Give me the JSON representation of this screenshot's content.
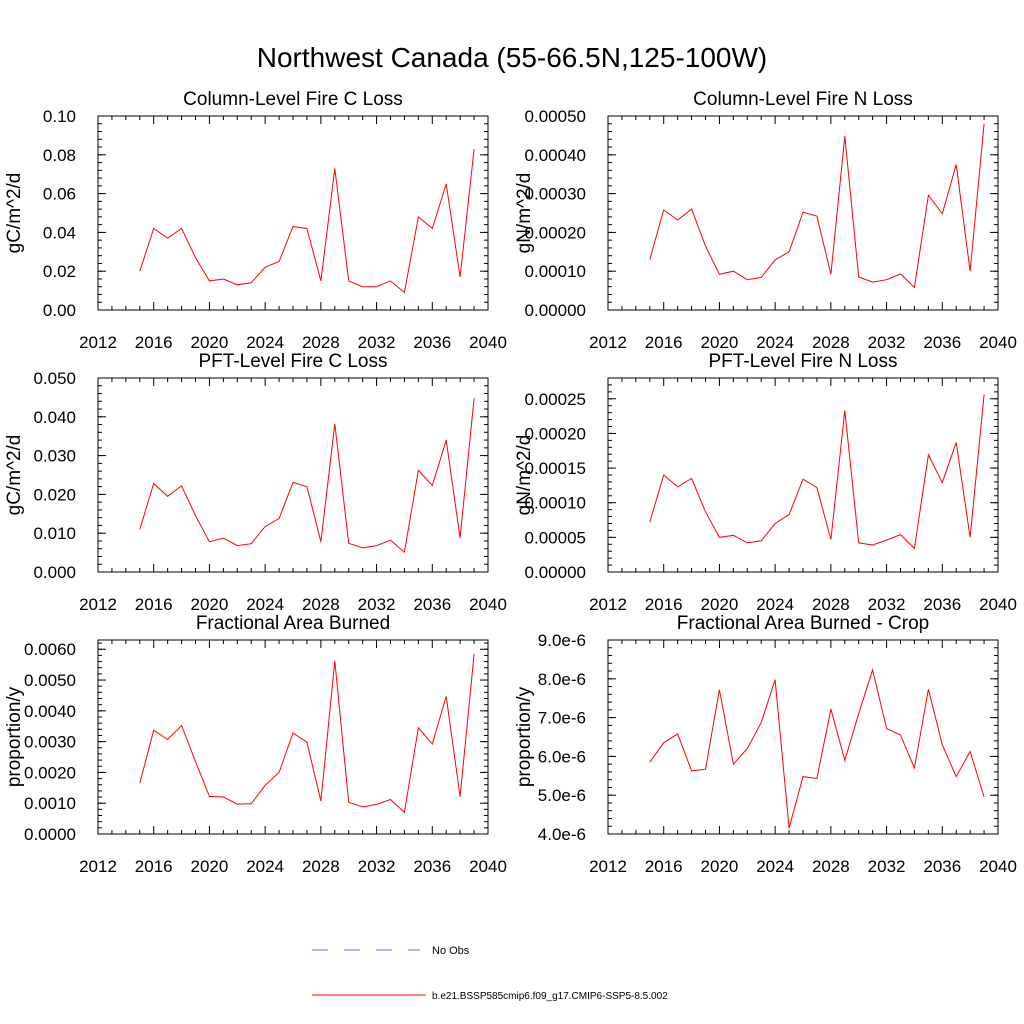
{
  "page": {
    "title": "Northwest Canada (55-66.5N,125-100W)"
  },
  "legend": [
    {
      "label": "No Obs",
      "style": "dashed",
      "color": "#6666cc"
    },
    {
      "label": "b.e21.BSSP585cmip6.f09_g17.CMIP6-SSP5-8.5.002",
      "style": "solid",
      "color": "#ff0000"
    }
  ],
  "colors": {
    "series": "#ff0000",
    "axes": "#000000",
    "no_obs": "#6666cc"
  },
  "chart_data": [
    {
      "type": "line",
      "title": "Column-Level Fire C Loss",
      "ylabel": "gC/m^2/d",
      "xlim": [
        2012,
        2040
      ],
      "x_ticks": [
        "2012",
        "2016",
        "2020",
        "2024",
        "2028",
        "2032",
        "2036",
        "2040"
      ],
      "ylim": [
        0,
        0.1
      ],
      "y_ticks": [
        "0.00",
        "0.02",
        "0.04",
        "0.06",
        "0.08",
        "0.10"
      ],
      "x": [
        2015,
        2016,
        2017,
        2018,
        2019,
        2020,
        2021,
        2022,
        2023,
        2024,
        2025,
        2026,
        2027,
        2028,
        2029,
        2030,
        2031,
        2032,
        2033,
        2034,
        2035,
        2036,
        2037,
        2038,
        2039
      ],
      "series": [
        {
          "name": "b.e21.BSSP585cmip6.f09_g17.CMIP6-SSP5-8.5.002",
          "values": [
            0.02,
            0.042,
            0.037,
            0.042,
            0.027,
            0.015,
            0.016,
            0.013,
            0.014,
            0.022,
            0.025,
            0.043,
            0.042,
            0.015,
            0.073,
            0.015,
            0.012,
            0.012,
            0.015,
            0.009,
            0.048,
            0.042,
            0.065,
            0.017,
            0.083
          ]
        }
      ]
    },
    {
      "type": "line",
      "title": "Column-Level Fire N Loss",
      "ylabel": "gN/m^2/d",
      "xlim": [
        2012,
        2040
      ],
      "x_ticks": [
        "2012",
        "2016",
        "2020",
        "2024",
        "2028",
        "2032",
        "2036",
        "2040"
      ],
      "ylim": [
        0,
        0.0005
      ],
      "y_ticks": [
        "0.00000",
        "0.00010",
        "0.00020",
        "0.00030",
        "0.00040",
        "0.00050"
      ],
      "x": [
        2015,
        2016,
        2017,
        2018,
        2019,
        2020,
        2021,
        2022,
        2023,
        2024,
        2025,
        2026,
        2027,
        2028,
        2029,
        2030,
        2031,
        2032,
        2033,
        2034,
        2035,
        2036,
        2037,
        2038,
        2039
      ],
      "series": [
        {
          "name": "b.e21.BSSP585cmip6.f09_g17.CMIP6-SSP5-8.5.002",
          "values": [
            0.00013,
            0.000258,
            0.000232,
            0.00026,
            0.000165,
            9.2e-05,
            0.0001,
            7.8e-05,
            8.4e-05,
            0.000129,
            0.00015,
            0.000252,
            0.000242,
            9.2e-05,
            0.000448,
            8.5e-05,
            7.2e-05,
            7.8e-05,
            9.3e-05,
            5.8e-05,
            0.000296,
            0.000248,
            0.000375,
            0.0001,
            0.00048
          ]
        }
      ]
    },
    {
      "type": "line",
      "title": "PFT-Level Fire C Loss",
      "ylabel": "gC/m^2/d",
      "xlim": [
        2012,
        2040
      ],
      "x_ticks": [
        "2012",
        "2016",
        "2020",
        "2024",
        "2028",
        "2032",
        "2036",
        "2040"
      ],
      "ylim": [
        0,
        0.05
      ],
      "y_ticks": [
        "0.000",
        "0.010",
        "0.020",
        "0.030",
        "0.040",
        "0.050"
      ],
      "x": [
        2015,
        2016,
        2017,
        2018,
        2019,
        2020,
        2021,
        2022,
        2023,
        2024,
        2025,
        2026,
        2027,
        2028,
        2029,
        2030,
        2031,
        2032,
        2033,
        2034,
        2035,
        2036,
        2037,
        2038,
        2039
      ],
      "series": [
        {
          "name": "b.e21.BSSP585cmip6.f09_g17.CMIP6-SSP5-8.5.002",
          "values": [
            0.011,
            0.0228,
            0.0195,
            0.0222,
            0.0145,
            0.0078,
            0.0087,
            0.0068,
            0.0073,
            0.0117,
            0.0138,
            0.0231,
            0.022,
            0.0078,
            0.0382,
            0.0074,
            0.0062,
            0.0068,
            0.0082,
            0.0051,
            0.0262,
            0.0223,
            0.034,
            0.0088,
            0.0448
          ]
        }
      ]
    },
    {
      "type": "line",
      "title": "PFT-Level Fire N Loss",
      "ylabel": "gN/m^2/d",
      "xlim": [
        2012,
        2040
      ],
      "x_ticks": [
        "2012",
        "2016",
        "2020",
        "2024",
        "2028",
        "2032",
        "2036",
        "2040"
      ],
      "ylim": [
        0,
        0.00028
      ],
      "y_ticks": [
        "0.00000",
        "0.00005",
        "0.00010",
        "0.00015",
        "0.00020",
        "0.00025"
      ],
      "x": [
        2015,
        2016,
        2017,
        2018,
        2019,
        2020,
        2021,
        2022,
        2023,
        2024,
        2025,
        2026,
        2027,
        2028,
        2029,
        2030,
        2031,
        2032,
        2033,
        2034,
        2035,
        2036,
        2037,
        2038,
        2039
      ],
      "series": [
        {
          "name": "b.e21.BSSP585cmip6.f09_g17.CMIP6-SSP5-8.5.002",
          "values": [
            7.2e-05,
            0.00014,
            0.000123,
            0.000135,
            8.7e-05,
            5e-05,
            5.3e-05,
            4.2e-05,
            4.5e-05,
            7e-05,
            8.3e-05,
            0.000134,
            0.000122,
            4.7e-05,
            0.000233,
            4.2e-05,
            3.9e-05,
            4.6e-05,
            5.4e-05,
            3.4e-05,
            0.000169,
            0.000129,
            0.000187,
            5e-05,
            0.000256
          ]
        }
      ]
    },
    {
      "type": "line",
      "title": "Fractional Area Burned",
      "ylabel": "proportion/y",
      "xlim": [
        2012,
        2040
      ],
      "x_ticks": [
        "2012",
        "2016",
        "2020",
        "2024",
        "2028",
        "2032",
        "2036",
        "2040"
      ],
      "ylim": [
        0,
        0.0063
      ],
      "y_ticks": [
        "0.0000",
        "0.0010",
        "0.0020",
        "0.0030",
        "0.0040",
        "0.0050",
        "0.0060"
      ],
      "x": [
        2015,
        2016,
        2017,
        2018,
        2019,
        2020,
        2021,
        2022,
        2023,
        2024,
        2025,
        2026,
        2027,
        2028,
        2029,
        2030,
        2031,
        2032,
        2033,
        2034,
        2035,
        2036,
        2037,
        2038,
        2039
      ],
      "series": [
        {
          "name": "b.e21.BSSP585cmip6.f09_g17.CMIP6-SSP5-8.5.002",
          "values": [
            0.00165,
            0.00337,
            0.00307,
            0.00352,
            0.00235,
            0.00122,
            0.0012,
            0.00097,
            0.00098,
            0.00158,
            0.002,
            0.00328,
            0.00298,
            0.00107,
            0.00562,
            0.00103,
            0.00088,
            0.00096,
            0.00112,
            0.0007,
            0.00345,
            0.00292,
            0.00447,
            0.00121,
            0.00585
          ]
        }
      ]
    },
    {
      "type": "line",
      "title": "Fractional Area Burned - Crop",
      "ylabel": "proportion/y",
      "xlim": [
        2012,
        2040
      ],
      "x_ticks": [
        "2012",
        "2016",
        "2020",
        "2024",
        "2028",
        "2032",
        "2036",
        "2040"
      ],
      "ylim": [
        4e-06,
        9e-06
      ],
      "y_ticks": [
        "4.0e-6",
        "5.0e-6",
        "6.0e-6",
        "7.0e-6",
        "8.0e-6",
        "9.0e-6"
      ],
      "x": [
        2015,
        2016,
        2017,
        2018,
        2019,
        2020,
        2021,
        2022,
        2023,
        2024,
        2025,
        2026,
        2027,
        2028,
        2029,
        2030,
        2031,
        2032,
        2033,
        2034,
        2035,
        2036,
        2037,
        2038,
        2039
      ],
      "series": [
        {
          "name": "b.e21.BSSP585cmip6.f09_g17.CMIP6-SSP5-8.5.002",
          "values": [
            5.85e-06,
            6.35e-06,
            6.58e-06,
            5.63e-06,
            5.67e-06,
            7.72e-06,
            5.8e-06,
            6.2e-06,
            6.87e-06,
            7.98e-06,
            4.15e-06,
            5.48e-06,
            5.43e-06,
            7.22e-06,
            5.9e-06,
            7.1e-06,
            8.23e-06,
            6.72e-06,
            6.55e-06,
            5.7e-06,
            7.73e-06,
            6.3e-06,
            5.48e-06,
            6.13e-06,
            4.95e-06
          ]
        }
      ]
    }
  ]
}
